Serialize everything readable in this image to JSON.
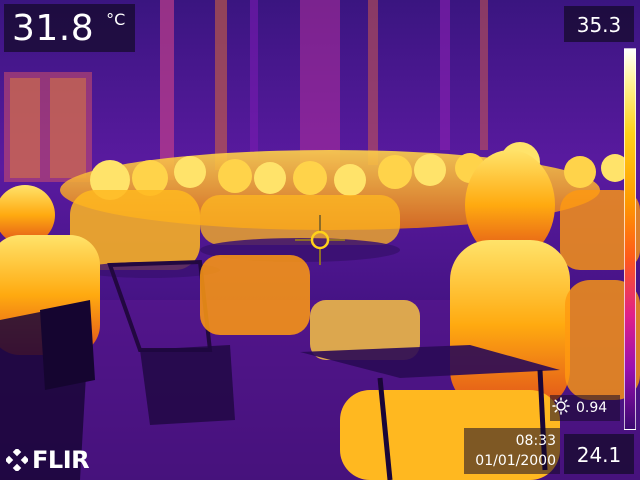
{
  "spot": {
    "temperature": "31.8",
    "unit": "°C"
  },
  "scale": {
    "max": "35.3",
    "min": "24.1"
  },
  "emissivity": {
    "icon": "emissivity-icon",
    "value": "0.94"
  },
  "datetime": {
    "time": "08:33",
    "date": "01/01/2000"
  },
  "brand": {
    "logo_text": "FLIR"
  },
  "palette": {
    "background": "#3a1580",
    "hot": "#ffd11a",
    "warm": "#ff8a10",
    "mid": "#d0358a",
    "cool": "#6a1ab0",
    "crosshair": "#ffd11a"
  }
}
